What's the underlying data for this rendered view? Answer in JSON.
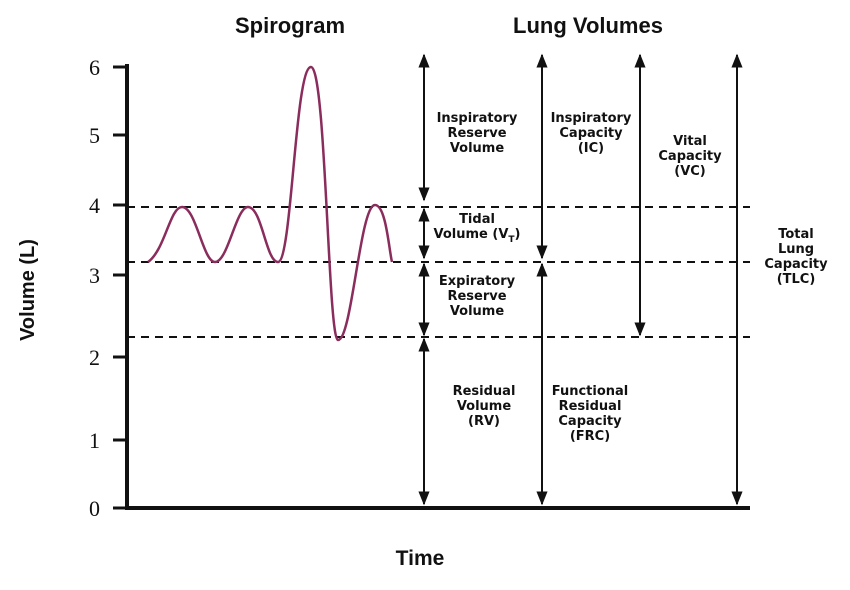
{
  "title_left": "Spirogram",
  "title_right": "Lung Volumes",
  "y_axis": {
    "label": "Volume (L)",
    "ticks": [
      "0",
      "1",
      "2",
      "3",
      "4",
      "5",
      "6"
    ]
  },
  "x_axis": {
    "label": "Time"
  },
  "volumes": [
    {
      "lines": [
        "Inspiratory",
        "Reserve",
        "Volume"
      ]
    },
    {
      "lines": [
        "Tidal",
        {
          "text": "Volume (V",
          "sub": "T",
          "after": ")"
        }
      ]
    },
    {
      "lines": [
        "Expiratory",
        "Reserve",
        "Volume"
      ]
    },
    {
      "lines": [
        "Residual",
        "Volume",
        "(RV)"
      ]
    },
    {
      "lines": [
        "Inspiratory",
        "Capacity",
        "(IC)"
      ]
    },
    {
      "lines": [
        "Functional",
        "Residual",
        "Capacity",
        "(FRC)"
      ]
    },
    {
      "lines": [
        "Vital",
        "Capacity",
        "(VC)"
      ]
    },
    {
      "lines": [
        "Total",
        "Lung",
        "Capacity",
        "(TLC)"
      ]
    }
  ]
}
